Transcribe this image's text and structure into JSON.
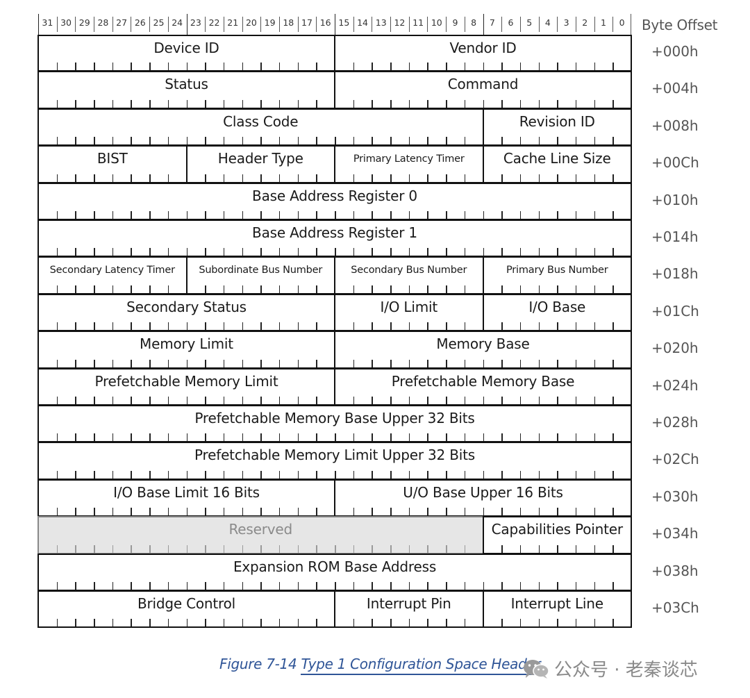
{
  "header": {
    "byte_offset_title": "Byte Offset",
    "bit_numbers": [
      "31",
      "30",
      "29",
      "28",
      "27",
      "26",
      "25",
      "24",
      "23",
      "22",
      "21",
      "20",
      "19",
      "18",
      "17",
      "16",
      "15",
      "14",
      "13",
      "12",
      "11",
      "10",
      "9",
      "8",
      "7",
      "6",
      "5",
      "4",
      "3",
      "2",
      "1",
      "0"
    ]
  },
  "rows": [
    {
      "offset": "+000h",
      "fields": [
        {
          "label": "Device ID",
          "bits": 16
        },
        {
          "label": "Vendor ID",
          "bits": 16
        }
      ]
    },
    {
      "offset": "+004h",
      "fields": [
        {
          "label": "Status",
          "bits": 16
        },
        {
          "label": "Command",
          "bits": 16
        }
      ]
    },
    {
      "offset": "+008h",
      "fields": [
        {
          "label": "Class Code",
          "bits": 24
        },
        {
          "label": "Revision ID",
          "bits": 8
        }
      ]
    },
    {
      "offset": "+00Ch",
      "fields": [
        {
          "label": "BIST",
          "bits": 8
        },
        {
          "label": "Header Type",
          "bits": 8
        },
        {
          "label": "Primary Latency Timer",
          "bits": 8,
          "small": true
        },
        {
          "label": "Cache Line Size",
          "bits": 8
        }
      ]
    },
    {
      "offset": "+010h",
      "fields": [
        {
          "label": "Base Address Register 0",
          "bits": 32
        }
      ]
    },
    {
      "offset": "+014h",
      "fields": [
        {
          "label": "Base Address Register 1",
          "bits": 32
        }
      ]
    },
    {
      "offset": "+018h",
      "fields": [
        {
          "label": "Secondary Latency Timer",
          "bits": 8,
          "small": true
        },
        {
          "label": "Subordinate Bus Number",
          "bits": 8,
          "small": true
        },
        {
          "label": "Secondary Bus Number",
          "bits": 8,
          "small": true
        },
        {
          "label": "Primary Bus Number",
          "bits": 8,
          "small": true
        }
      ]
    },
    {
      "offset": "+01Ch",
      "fields": [
        {
          "label": "Secondary Status",
          "bits": 16
        },
        {
          "label": "I/O Limit",
          "bits": 8
        },
        {
          "label": "I/O Base",
          "bits": 8
        }
      ]
    },
    {
      "offset": "+020h",
      "fields": [
        {
          "label": "Memory Limit",
          "bits": 16
        },
        {
          "label": "Memory Base",
          "bits": 16
        }
      ]
    },
    {
      "offset": "+024h",
      "fields": [
        {
          "label": "Prefetchable Memory Limit",
          "bits": 16
        },
        {
          "label": "Prefetchable Memory Base",
          "bits": 16
        }
      ]
    },
    {
      "offset": "+028h",
      "fields": [
        {
          "label": "Prefetchable Memory Base Upper 32 Bits",
          "bits": 32
        }
      ]
    },
    {
      "offset": "+02Ch",
      "fields": [
        {
          "label": "Prefetchable Memory Limit Upper 32 Bits",
          "bits": 32
        }
      ]
    },
    {
      "offset": "+030h",
      "fields": [
        {
          "label": "I/O Base Limit 16 Bits",
          "bits": 16
        },
        {
          "label": "U/O Base Upper 16 Bits",
          "bits": 16
        }
      ]
    },
    {
      "offset": "+034h",
      "fields": [
        {
          "label": "Reserved",
          "bits": 24,
          "reserved": true
        },
        {
          "label": "Capabilities Pointer",
          "bits": 8
        }
      ]
    },
    {
      "offset": "+038h",
      "fields": [
        {
          "label": "Expansion ROM Base Address",
          "bits": 32
        }
      ]
    },
    {
      "offset": "+03Ch",
      "fields": [
        {
          "label": "Bridge Control",
          "bits": 16
        },
        {
          "label": "Interrupt Pin",
          "bits": 8
        },
        {
          "label": "Interrupt Line",
          "bits": 8
        }
      ]
    }
  ],
  "caption": {
    "figure_number": "Figure  7-14",
    "title": "Type 1 Configuration Space Header"
  },
  "watermark": {
    "icon": "wechat-icon",
    "text": "公众号 · 老秦谈芯"
  },
  "colors": {
    "caption": "#2f5597",
    "reserved_fill": "#e6e6e6"
  }
}
